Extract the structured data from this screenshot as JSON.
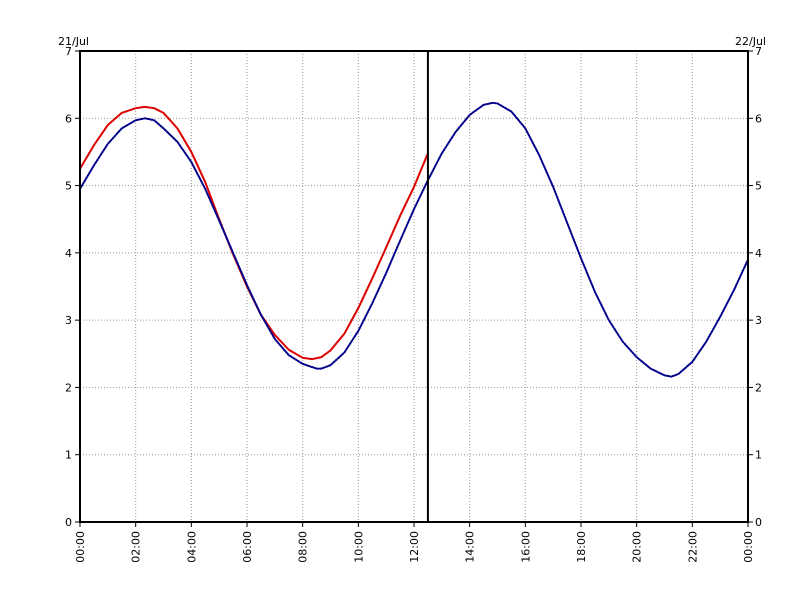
{
  "chart_data": {
    "type": "line",
    "title": "",
    "xlabel": "",
    "ylabel": "",
    "x_start_label": "21/Jul",
    "x_end_label": "22/Jul",
    "xlim": [
      "00:00",
      "24:00"
    ],
    "ylim": [
      0,
      7
    ],
    "grid": true,
    "legend": "none",
    "x_tick_labels": [
      "00:00",
      "02:00",
      "04:00",
      "06:00",
      "08:00",
      "10:00",
      "12:00",
      "14:00",
      "16:00",
      "18:00",
      "20:00",
      "22:00",
      "00:00"
    ],
    "y_tick_labels": [
      "0",
      "1",
      "2",
      "3",
      "4",
      "5",
      "6",
      "7"
    ],
    "marker_time": "12:30",
    "series": [
      {
        "style": "solid",
        "color": "#dd0000",
        "x": [
          "00:00",
          "00:30",
          "01:00",
          "01:30",
          "02:00",
          "02:20",
          "02:40",
          "03:00",
          "03:30",
          "04:00",
          "04:30",
          "05:00",
          "05:30",
          "06:00",
          "06:30",
          "07:00",
          "07:30",
          "08:00",
          "08:20",
          "08:40",
          "09:00",
          "09:30",
          "10:00",
          "10:30",
          "11:00",
          "11:30",
          "12:00",
          "12:30"
        ],
        "values": [
          5.25,
          5.6,
          5.9,
          6.08,
          6.15,
          6.17,
          6.15,
          6.08,
          5.85,
          5.5,
          5.05,
          4.5,
          3.98,
          3.5,
          3.08,
          2.78,
          2.56,
          2.44,
          2.42,
          2.45,
          2.55,
          2.8,
          3.18,
          3.62,
          4.08,
          4.55,
          4.98,
          5.48
        ]
      },
      {
        "style": "dotted",
        "color": "#00008b",
        "x": [
          "00:00",
          "00:30",
          "01:00",
          "01:30",
          "02:00",
          "02:20",
          "02:40",
          "03:00",
          "03:30",
          "04:00",
          "04:30",
          "05:00",
          "05:30",
          "06:00",
          "06:30",
          "07:00",
          "07:30",
          "08:00",
          "08:30",
          "08:40",
          "09:00",
          "09:30",
          "10:00",
          "10:30",
          "11:00",
          "11:30",
          "12:00",
          "12:30",
          "13:00",
          "13:30",
          "14:00",
          "14:30",
          "14:50",
          "15:00",
          "15:30",
          "16:00",
          "16:30",
          "17:00",
          "17:30",
          "18:00",
          "18:30",
          "19:00",
          "19:30",
          "20:00",
          "20:30",
          "21:00",
          "21:15",
          "21:30",
          "22:00",
          "22:30",
          "23:00",
          "23:30",
          "24:00"
        ],
        "values": [
          4.95,
          5.3,
          5.62,
          5.85,
          5.97,
          6.0,
          5.97,
          5.85,
          5.65,
          5.35,
          4.95,
          4.48,
          4.0,
          3.52,
          3.08,
          2.72,
          2.48,
          2.35,
          2.28,
          2.28,
          2.33,
          2.52,
          2.84,
          3.25,
          3.7,
          4.18,
          4.65,
          5.08,
          5.48,
          5.8,
          6.05,
          6.2,
          6.23,
          6.22,
          6.1,
          5.85,
          5.45,
          4.98,
          4.45,
          3.92,
          3.42,
          3.0,
          2.68,
          2.45,
          2.28,
          2.18,
          2.16,
          2.2,
          2.38,
          2.68,
          3.05,
          3.45,
          3.9
        ]
      }
    ]
  }
}
